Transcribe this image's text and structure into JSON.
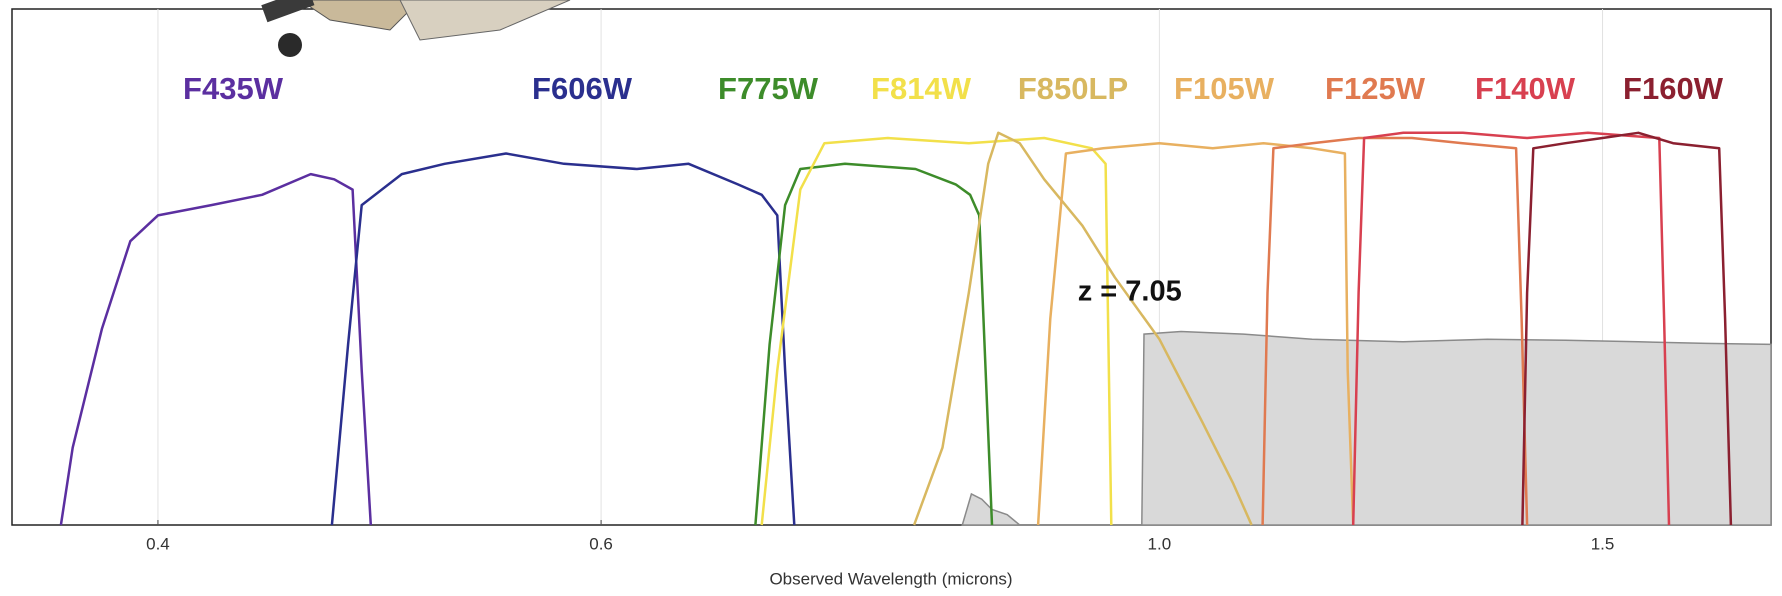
{
  "chart_data": {
    "type": "line",
    "xlabel": "Observed Wavelength (microns)",
    "xscale": "log",
    "xlim": [
      0.35,
      1.75
    ],
    "ylim": [
      0,
      1
    ],
    "xticks": [
      0.4,
      0.6,
      {
        "value": 1.0,
        "label": "1.0"
      },
      1.5
    ],
    "grid": true,
    "annotation": {
      "text": "z = 7.05",
      "x": 0.928,
      "y": 0.45
    },
    "spectrum": {
      "color": "#8a8a8a",
      "fill": "#d9d9d9",
      "x": [
        0.835,
        0.842,
        0.85,
        0.858,
        0.87,
        0.88,
        0.984,
        0.986,
        1.02,
        1.08,
        1.15,
        1.25,
        1.35,
        1.45,
        1.55,
        1.65,
        1.75
      ],
      "values": [
        0,
        0.06,
        0.05,
        0.03,
        0.02,
        0,
        0,
        0.37,
        0.375,
        0.37,
        0.36,
        0.355,
        0.36,
        0.358,
        0.355,
        0.352,
        0.35
      ]
    },
    "series": [
      {
        "name": "F435W",
        "color": "#5b2fa0",
        "x": [
          0.366,
          0.37,
          0.38,
          0.39,
          0.4,
          0.42,
          0.44,
          0.46,
          0.47,
          0.478,
          0.482,
          0.486
        ],
        "values": [
          0,
          0.15,
          0.38,
          0.55,
          0.6,
          0.62,
          0.64,
          0.68,
          0.67,
          0.65,
          0.3,
          0
        ]
      },
      {
        "name": "F606W",
        "color": "#2a2f8e",
        "x": [
          0.469,
          0.476,
          0.482,
          0.5,
          0.52,
          0.55,
          0.58,
          0.62,
          0.65,
          0.68,
          0.695,
          0.705,
          0.71,
          0.716
        ],
        "values": [
          0,
          0.35,
          0.62,
          0.68,
          0.7,
          0.72,
          0.7,
          0.69,
          0.7,
          0.66,
          0.64,
          0.6,
          0.3,
          0
        ]
      },
      {
        "name": "F775W",
        "color": "#3d8c2a",
        "x": [
          0.691,
          0.7,
          0.71,
          0.72,
          0.75,
          0.8,
          0.83,
          0.841,
          0.848,
          0.853,
          0.858
        ],
        "values": [
          0,
          0.35,
          0.62,
          0.69,
          0.7,
          0.69,
          0.66,
          0.64,
          0.6,
          0.3,
          0
        ]
      },
      {
        "name": "F814W",
        "color": "#f2e04a",
        "x": [
          0.695,
          0.705,
          0.72,
          0.736,
          0.78,
          0.84,
          0.9,
          0.94,
          0.952,
          0.957
        ],
        "values": [
          0,
          0.3,
          0.65,
          0.74,
          0.75,
          0.74,
          0.75,
          0.73,
          0.7,
          0
        ]
      },
      {
        "name": "F850LP",
        "color": "#d8b860",
        "x": [
          0.799,
          0.82,
          0.84,
          0.855,
          0.863,
          0.88,
          0.9,
          0.932,
          0.96,
          1.0,
          1.04,
          1.07,
          1.088
        ],
        "values": [
          0,
          0.15,
          0.45,
          0.7,
          0.76,
          0.74,
          0.67,
          0.58,
          0.48,
          0.36,
          0.2,
          0.08,
          0
        ]
      },
      {
        "name": "F105W",
        "color": "#e8b060",
        "x": [
          0.895,
          0.905,
          0.918,
          0.95,
          1.0,
          1.05,
          1.1,
          1.15,
          1.185,
          1.188,
          1.194
        ],
        "values": [
          0,
          0.4,
          0.72,
          0.73,
          0.74,
          0.73,
          0.74,
          0.73,
          0.72,
          0.3,
          0
        ]
      },
      {
        "name": "F125W",
        "color": "#e07a50",
        "x": [
          1.099,
          1.104,
          1.11,
          1.15,
          1.2,
          1.26,
          1.32,
          1.386,
          1.393,
          1.4
        ],
        "values": [
          0,
          0.45,
          0.73,
          0.74,
          0.75,
          0.75,
          0.74,
          0.73,
          0.4,
          0
        ]
      },
      {
        "name": "F140W",
        "color": "#d84050",
        "x": [
          1.194,
          1.2,
          1.206,
          1.25,
          1.32,
          1.4,
          1.48,
          1.58,
          1.587,
          1.594
        ],
        "values": [
          0,
          0.45,
          0.75,
          0.76,
          0.76,
          0.75,
          0.76,
          0.75,
          0.4,
          0
        ]
      },
      {
        "name": "F160W",
        "color": "#8b2030",
        "x": [
          1.394,
          1.4,
          1.408,
          1.45,
          1.5,
          1.55,
          1.6,
          1.669,
          1.678,
          1.687
        ],
        "values": [
          0,
          0.45,
          0.73,
          0.74,
          0.75,
          0.76,
          0.74,
          0.73,
          0.4,
          0
        ]
      }
    ]
  }
}
